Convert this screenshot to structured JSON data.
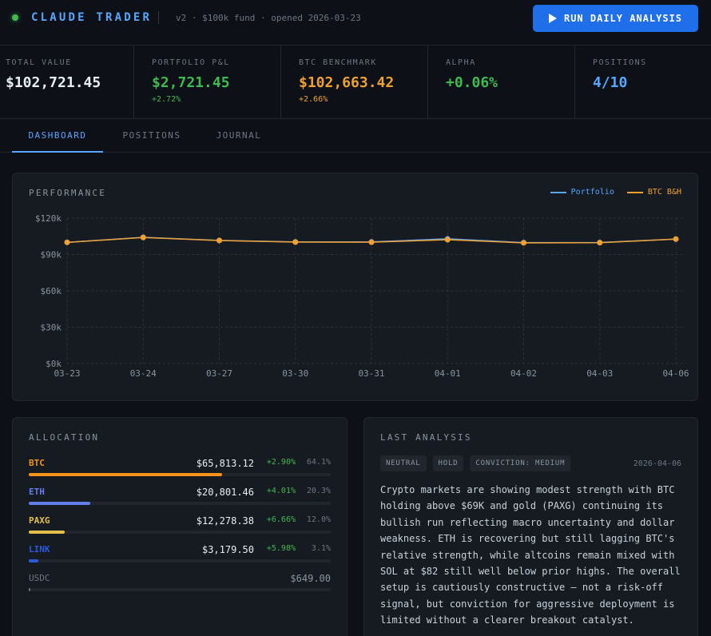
{
  "header": {
    "title": "CLAUDE TRADER",
    "meta": "v2 · $100k fund · opened 2026-03-23",
    "run_button_label": "RUN DAILY ANALYSIS"
  },
  "stats": {
    "total_value": {
      "label": "TOTAL VALUE",
      "value": "$102,721.45"
    },
    "pnl": {
      "label": "PORTFOLIO P&L",
      "value": "$2,721.45",
      "sub": "+2.72%"
    },
    "btc": {
      "label": "BTC BENCHMARK",
      "value": "$102,663.42",
      "sub": "+2.66%"
    },
    "alpha": {
      "label": "ALPHA",
      "value": "+0.06%"
    },
    "positions": {
      "label": "POSITIONS",
      "value": "4/10"
    }
  },
  "tabs": [
    {
      "label": "DASHBOARD"
    },
    {
      "label": "POSITIONS"
    },
    {
      "label": "JOURNAL"
    }
  ],
  "performance": {
    "title": "PERFORMANCE",
    "legend": {
      "portfolio": "Portfolio",
      "btc": "BTC B&H"
    }
  },
  "colors": {
    "portfolio": "#58a6ff",
    "btc": "#f0a030",
    "positive": "#3fb950",
    "btc_asset": "#f7931a",
    "eth_asset": "#627eea",
    "paxg_asset": "#e3c04b",
    "link_asset": "#2a5ada",
    "usdc_asset": "#6e7681"
  },
  "chart_data": {
    "type": "line",
    "categories": [
      "03-23",
      "03-24",
      "03-27",
      "03-30",
      "03-31",
      "04-01",
      "04-02",
      "04-03",
      "04-06"
    ],
    "series": [
      {
        "name": "Portfolio",
        "values": [
          100000,
          104200,
          101600,
          100400,
          100400,
          102900,
          99800,
          99900,
          102721
        ]
      },
      {
        "name": "BTC B&H",
        "values": [
          100000,
          104000,
          101500,
          100200,
          100100,
          102200,
          99600,
          99700,
          102663
        ]
      }
    ],
    "ylim": [
      0,
      120000
    ],
    "yticks": [
      "$0k",
      "$30k",
      "$60k",
      "$90k",
      "$120k"
    ],
    "ytick_values": [
      0,
      30000,
      60000,
      90000,
      120000
    ],
    "grid": true,
    "legend_position": "top-right"
  },
  "allocation": {
    "title": "ALLOCATION",
    "items": [
      {
        "symbol": "BTC",
        "value": "$65,813.12",
        "change": "+2.90%",
        "pct": "64.1%",
        "weight": 0.641,
        "color": "#f7931a"
      },
      {
        "symbol": "ETH",
        "value": "$20,801.46",
        "change": "+4.01%",
        "pct": "20.3%",
        "weight": 0.203,
        "color": "#627eea"
      },
      {
        "symbol": "PAXG",
        "value": "$12,278.38",
        "change": "+6.66%",
        "pct": "12.0%",
        "weight": 0.12,
        "color": "#e3c04b"
      },
      {
        "symbol": "LINK",
        "value": "$3,179.50",
        "change": "+5.98%",
        "pct": "3.1%",
        "weight": 0.031,
        "color": "#2a5ada"
      },
      {
        "symbol": "USDC",
        "value": "$649.00",
        "change": "",
        "pct": "",
        "weight": 0.006,
        "color": "#6e7681"
      }
    ]
  },
  "analysis": {
    "title": "LAST ANALYSIS",
    "badges": [
      "NEUTRAL",
      "HOLD",
      "CONVICTION: MEDIUM"
    ],
    "date": "2026-04-06",
    "text": "Crypto markets are showing modest strength with BTC holding above $69K and gold (PAXG) continuing its bullish run reflecting macro uncertainty and dollar weakness. ETH is recovering but still lagging BTC's relative strength, while altcoins remain mixed with SOL at $82 still well below prior highs. The overall setup is cautiously constructive — not a risk-off signal, but conviction for aggressive deployment is limited without a clearer breakout catalyst."
  }
}
